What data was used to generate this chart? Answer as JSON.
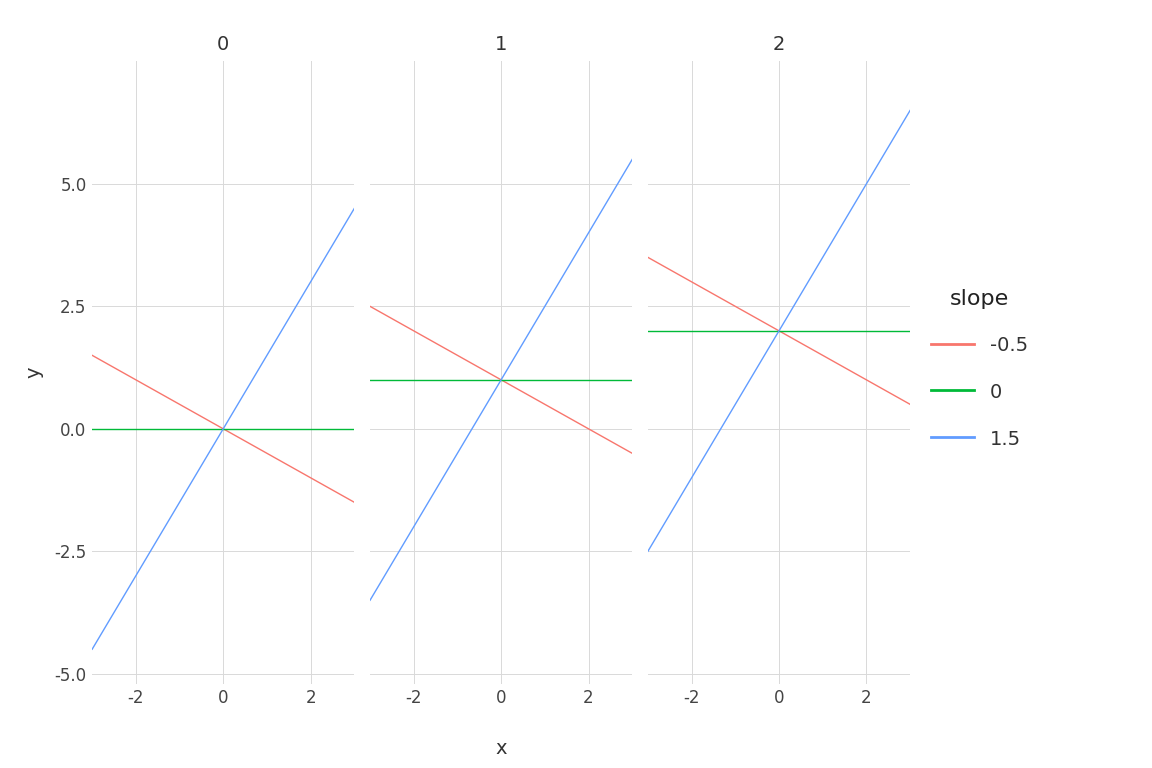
{
  "panels": [
    0,
    1,
    2
  ],
  "intercepts": [
    0,
    1,
    2
  ],
  "slopes": [
    -0.5,
    0,
    1.5
  ],
  "slope_labels": [
    "-0.5",
    "0",
    "1.5"
  ],
  "slope_colors": [
    "#F8766D",
    "#00BA38",
    "#619CFF"
  ],
  "x_range": [
    -3,
    3
  ],
  "y_range": [
    -5.2,
    7.5
  ],
  "y_ticks": [
    -5.0,
    -2.5,
    0.0,
    2.5,
    5.0
  ],
  "x_ticks": [
    -2,
    0,
    2
  ],
  "xlabel": "x",
  "ylabel": "y",
  "legend_title": "slope",
  "bg_color": "#FFFFFF",
  "grid_color": "#D9D9D9",
  "line_width": 1.0,
  "panel_title_fontsize": 14,
  "axis_label_fontsize": 14,
  "tick_label_fontsize": 12,
  "legend_title_fontsize": 16,
  "legend_label_fontsize": 14
}
